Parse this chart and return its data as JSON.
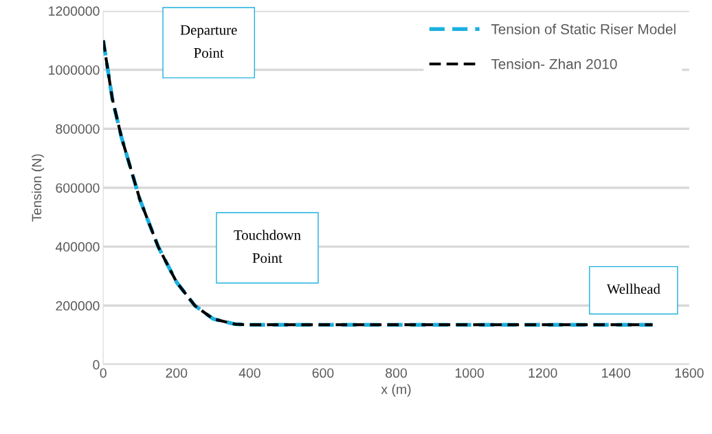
{
  "chart_data": {
    "type": "line",
    "xlabel": "x (m)",
    "ylabel": "Tension (N)",
    "x": [
      0,
      25,
      50,
      100,
      150,
      200,
      250,
      300,
      360,
      400,
      600,
      800,
      1000,
      1200,
      1400,
      1500
    ],
    "series": [
      {
        "name": "Tension of Static Riser Model",
        "color": "#1cb0e0",
        "values": [
          1100000,
          900000,
          770000,
          560000,
          400000,
          280000,
          200000,
          155000,
          137000,
          135000,
          135000,
          135000,
          135000,
          135000,
          135000,
          135000
        ]
      },
      {
        "name": "Tension- Zhan 2010",
        "color": "#000000",
        "values": [
          1100000,
          900000,
          770000,
          560000,
          400000,
          280000,
          200000,
          155000,
          137000,
          135000,
          135000,
          135000,
          135000,
          135000,
          135000,
          135000
        ]
      }
    ],
    "xlim": [
      0,
      1600
    ],
    "xticks": [
      0,
      200,
      400,
      600,
      800,
      1000,
      1200,
      1400,
      1600
    ],
    "ylim": [
      0,
      1200000
    ],
    "yticks": [
      0,
      200000,
      400000,
      600000,
      800000,
      1000000,
      1200000
    ],
    "grid": "y",
    "legend": "top right",
    "line_style": "dashed",
    "marker": "none",
    "annotations": [
      "Departure\nPoint",
      "Touchdown\nPoint",
      "Wellhead"
    ]
  }
}
